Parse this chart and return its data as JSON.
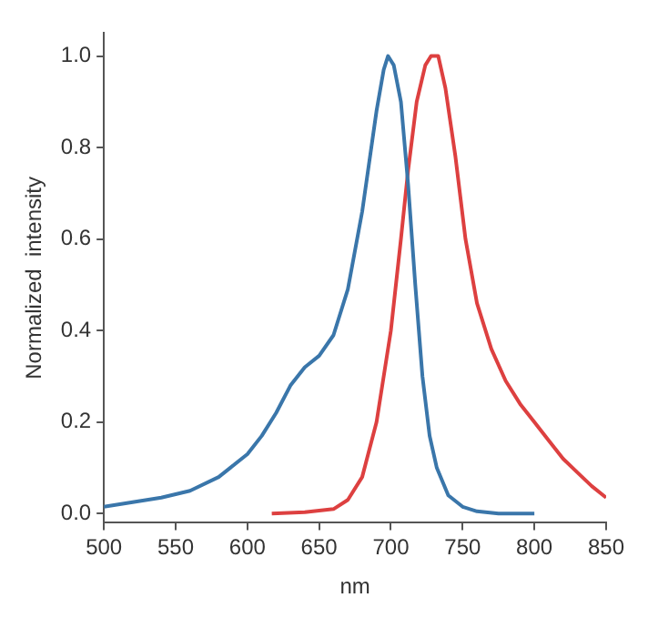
{
  "chart_data": {
    "type": "line",
    "xlabel": "nm",
    "ylabel": "Normalized  intensity",
    "xlim": [
      500,
      850
    ],
    "ylim": [
      -0.02,
      1.05
    ],
    "xticks": [
      500,
      550,
      600,
      650,
      700,
      750,
      800,
      850
    ],
    "yticks": [
      {
        "value": 0,
        "label": "0.0"
      },
      {
        "value": 0.2,
        "label": "0.2"
      },
      {
        "value": 0.4,
        "label": "0.4"
      },
      {
        "value": 0.6,
        "label": "0.6"
      },
      {
        "value": 0.8,
        "label": "0.8"
      },
      {
        "value": 1,
        "label": "1.0"
      }
    ],
    "grid": false,
    "legend": false,
    "marker": "none",
    "line_style": "solid",
    "series": [
      {
        "color": "#3a76aa",
        "x": [
          500,
          520,
          540,
          560,
          580,
          600,
          610,
          620,
          630,
          640,
          650,
          660,
          670,
          680,
          690,
          695,
          698,
          702,
          707,
          712,
          717,
          722,
          727,
          732,
          740,
          750,
          760,
          775,
          800
        ],
        "values": [
          0.015,
          0.025,
          0.035,
          0.05,
          0.08,
          0.13,
          0.17,
          0.22,
          0.28,
          0.32,
          0.345,
          0.39,
          0.49,
          0.66,
          0.88,
          0.97,
          1.0,
          0.98,
          0.9,
          0.72,
          0.5,
          0.3,
          0.17,
          0.1,
          0.04,
          0.015,
          0.005,
          0,
          0
        ]
      },
      {
        "color": "#dd4040",
        "x": [
          617,
          640,
          660,
          670,
          680,
          690,
          700,
          707,
          712,
          718,
          724,
          728,
          733,
          738,
          745,
          752,
          760,
          770,
          780,
          790,
          800,
          810,
          820,
          830,
          840,
          850
        ],
        "values": [
          0,
          0.003,
          0.01,
          0.03,
          0.08,
          0.2,
          0.4,
          0.6,
          0.75,
          0.9,
          0.98,
          1.0,
          1.0,
          0.93,
          0.78,
          0.6,
          0.46,
          0.36,
          0.29,
          0.24,
          0.2,
          0.16,
          0.12,
          0.09,
          0.06,
          0.035
        ]
      }
    ]
  }
}
